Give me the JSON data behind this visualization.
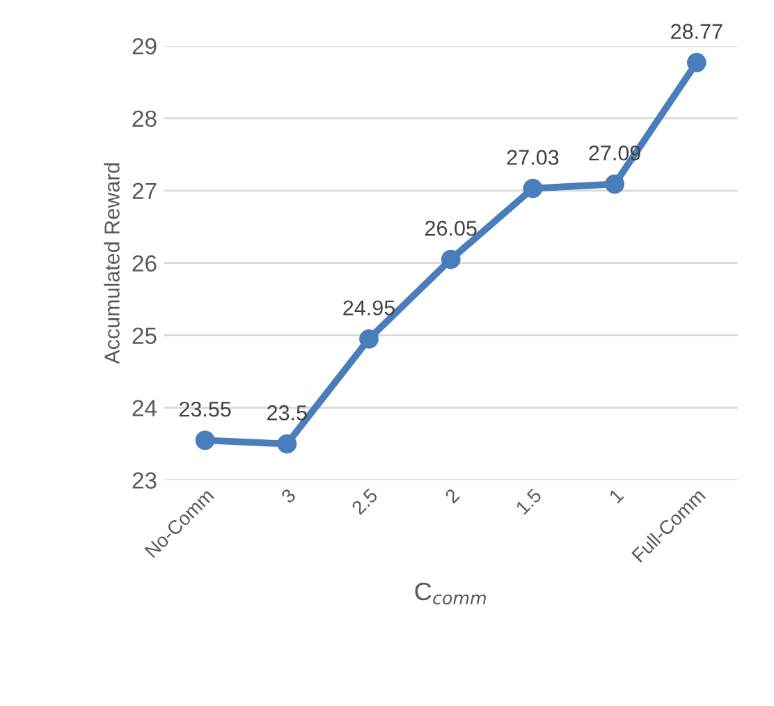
{
  "chart_data": {
    "type": "line",
    "xlabel": "C$_{comm}$",
    "ylabel": "Accumulated Reward",
    "categories": [
      "No-Comm",
      "3",
      "2.5",
      "2",
      "1.5",
      "1",
      "Full-Comm"
    ],
    "series": [
      {
        "color": "#4a7ebb",
        "values": [
          23.55,
          23.5,
          24.95,
          26.05,
          27.03,
          27.09,
          28.77
        ]
      }
    ],
    "ylim": [
      23,
      29
    ],
    "yticks": [
      23,
      24,
      25,
      26,
      27,
      28,
      29
    ],
    "grid": "y",
    "marker": "circle",
    "line_style": "solid",
    "data_labels": true,
    "legend": false
  }
}
